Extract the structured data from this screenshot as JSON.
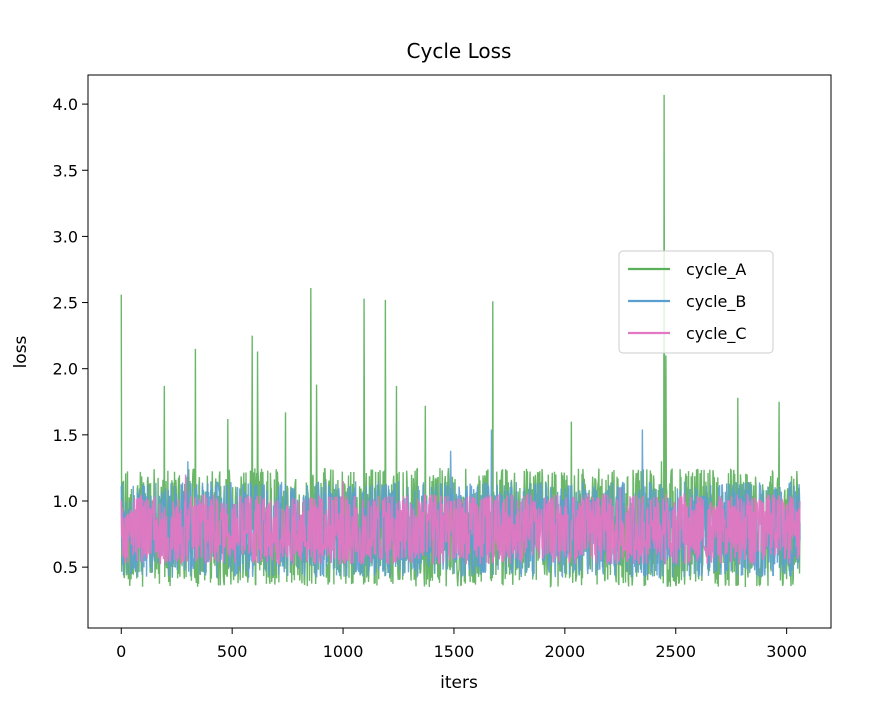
{
  "chart_data": {
    "type": "line",
    "title": "Cycle Loss",
    "xlabel": "iters",
    "ylabel": "loss",
    "xlim": [
      -150,
      3200
    ],
    "ylim": [
      0.04,
      4.22
    ],
    "xticks": [
      0,
      500,
      1000,
      1500,
      2000,
      2500,
      3000
    ],
    "yticks": [
      0.5,
      1.0,
      1.5,
      2.0,
      2.5,
      3.0,
      3.5,
      4.0
    ],
    "xtick_labels": [
      "0",
      "500",
      "1000",
      "1500",
      "2000",
      "2500",
      "3000"
    ],
    "ytick_labels": [
      "0.5",
      "1.0",
      "1.5",
      "2.0",
      "2.5",
      "3.0",
      "3.5",
      "4.0"
    ],
    "x_range": [
      0,
      3060
    ],
    "grid": false,
    "legend_position": "center-right",
    "series": [
      {
        "name": "cycle_A",
        "color": "#5aaf5a",
        "band": [
          0.35,
          1.25
        ],
        "spikes": [
          [
            0,
            2.56
          ],
          [
            195,
            1.87
          ],
          [
            335,
            2.15
          ],
          [
            590,
            2.25
          ],
          [
            615,
            2.13
          ],
          [
            855,
            2.61
          ],
          [
            880,
            1.88
          ],
          [
            1095,
            2.53
          ],
          [
            1190,
            2.52
          ],
          [
            1240,
            1.87
          ],
          [
            1675,
            2.51
          ],
          [
            2030,
            1.6
          ],
          [
            2435,
            1.3
          ],
          [
            2447,
            4.07
          ],
          [
            2780,
            1.78
          ],
          [
            2965,
            1.75
          ],
          [
            2455,
            2.1
          ],
          [
            1370,
            1.72
          ],
          [
            480,
            1.62
          ],
          [
            740,
            1.67
          ]
        ]
      },
      {
        "name": "cycle_B",
        "color": "#5b9fd0",
        "band": [
          0.42,
          1.15
        ],
        "spikes": [
          [
            1670,
            1.54
          ],
          [
            2350,
            1.54
          ],
          [
            1485,
            1.38
          ],
          [
            300,
            1.3
          ]
        ]
      },
      {
        "name": "cycle_C",
        "color": "#e377c2",
        "band": [
          0.52,
          1.05
        ],
        "spikes": [
          [
            290,
            1.2
          ],
          [
            1000,
            1.15
          ],
          [
            2250,
            1.1
          ]
        ]
      }
    ]
  }
}
